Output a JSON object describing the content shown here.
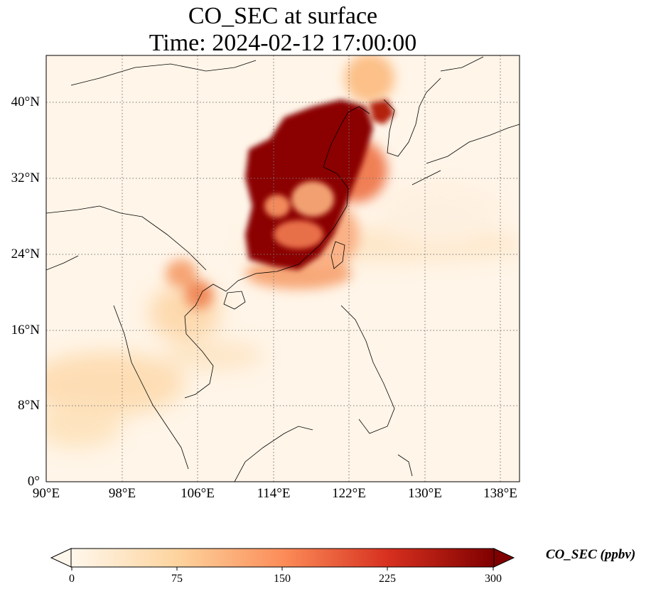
{
  "title": {
    "line1": "CO_SEC at surface",
    "line2": "Time: 2024-02-12 17:00:00"
  },
  "map": {
    "lat_ticks": [
      "40°N",
      "32°N",
      "24°N",
      "16°N",
      "8°N",
      "0°"
    ],
    "lon_ticks": [
      "90°E",
      "98°E",
      "106°E",
      "114°E",
      "122°E",
      "130°E",
      "138°E"
    ],
    "gridlines": "dotted",
    "extent": {
      "lon": [
        90,
        140
      ],
      "lat": [
        0,
        45
      ]
    }
  },
  "colorbar": {
    "label": "CO_SEC (ppbv)",
    "ticks": [
      "0",
      "75",
      "150",
      "225",
      "300"
    ],
    "colormap": "OrRd",
    "range": [
      0,
      300
    ],
    "extend": "both",
    "colors": [
      "#fff7ec",
      "#fdd49e",
      "#fc8d59",
      "#d7301f",
      "#7f0000"
    ]
  }
}
